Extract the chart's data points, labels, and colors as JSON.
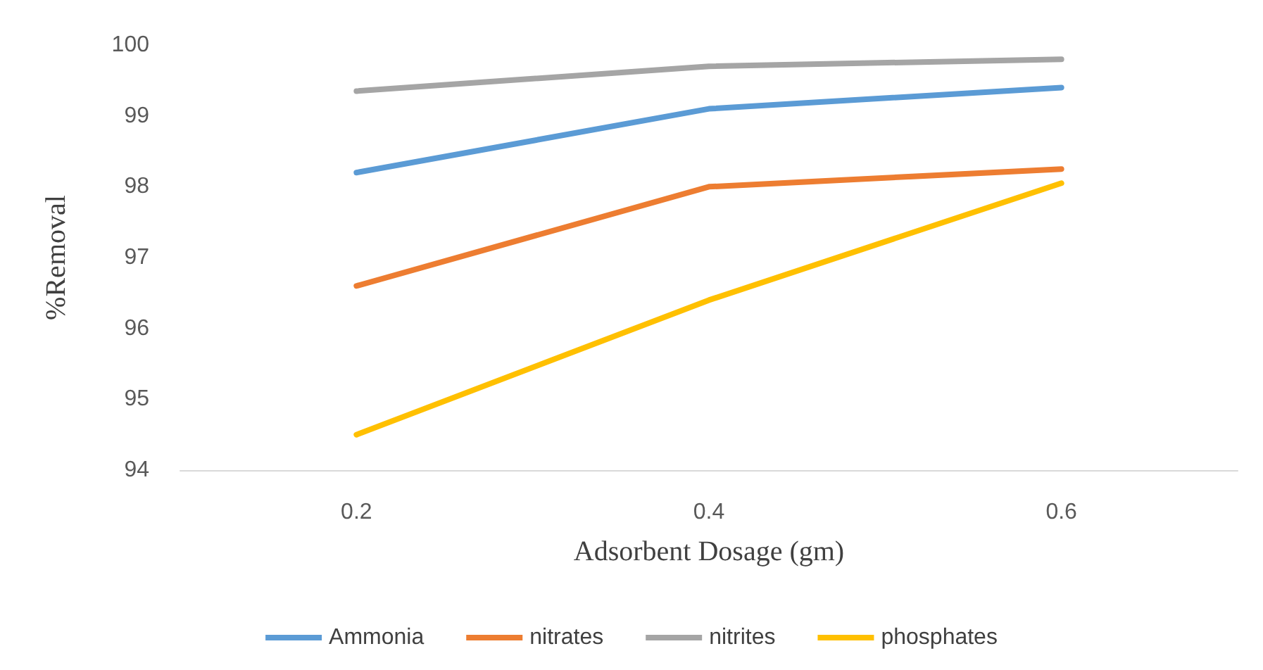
{
  "chart_data": {
    "type": "line",
    "xlabel": "Adsorbent Dosage (gm)",
    "ylabel": "%Removal",
    "categories": [
      "0.2",
      "0.4",
      "0.6"
    ],
    "series": [
      {
        "name": "Ammonia",
        "color": "#5b9bd5",
        "values": [
          98.2,
          99.1,
          99.4
        ]
      },
      {
        "name": "nitrates",
        "color": "#ed7d31",
        "values": [
          96.6,
          98.0,
          98.25
        ]
      },
      {
        "name": "nitrites",
        "color": "#a5a5a5",
        "values": [
          99.35,
          99.7,
          99.8
        ]
      },
      {
        "name": "phosphates",
        "color": "#ffc000",
        "values": [
          94.5,
          96.4,
          98.05
        ]
      }
    ],
    "ylim": [
      94,
      100
    ],
    "yticks": [
      94,
      95,
      96,
      97,
      98,
      99,
      100
    ],
    "grid": false,
    "legend": "bottom",
    "marker": "none",
    "line_style": "solid"
  }
}
